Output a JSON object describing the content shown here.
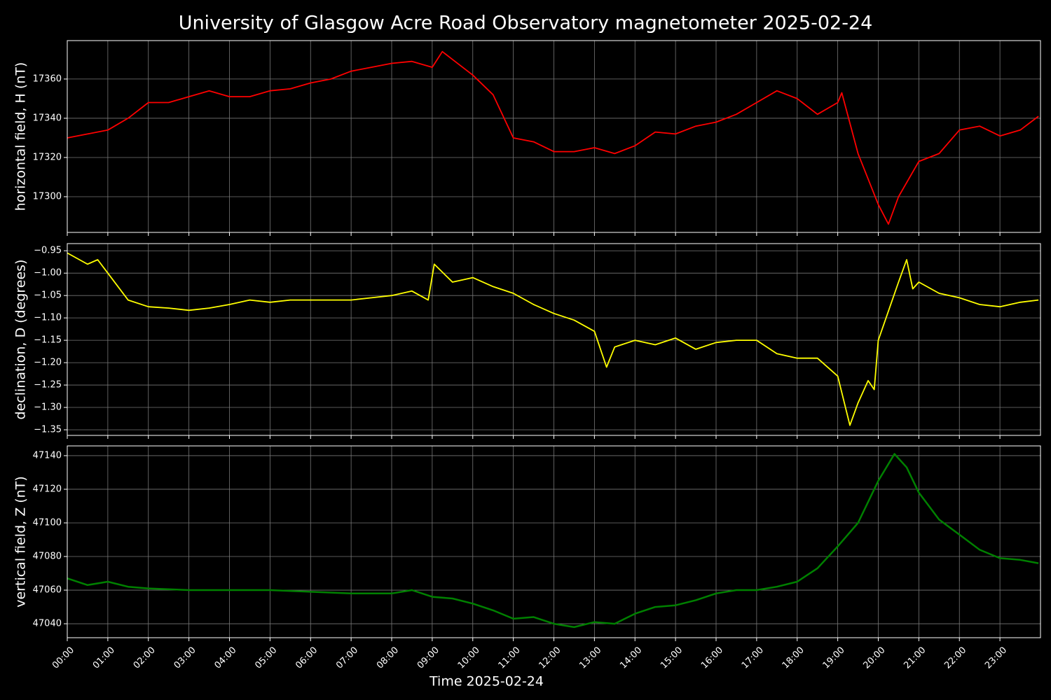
{
  "title": "University of Glasgow Acre Road Observatory magnetometer 2025-02-24",
  "chart_data": [
    {
      "type": "line",
      "ylabel": "horizontal field, H (nT)",
      "color": "#ff0000",
      "x": [
        0,
        0.5,
        1,
        1.5,
        2,
        2.5,
        3,
        3.5,
        4,
        4.5,
        5,
        5.5,
        6,
        6.5,
        7,
        7.5,
        8,
        8.5,
        9,
        9.25,
        9.5,
        10,
        10.5,
        11,
        11.5,
        12,
        12.5,
        13,
        13.5,
        14,
        14.5,
        15,
        15.5,
        16,
        16.5,
        17,
        17.5,
        18,
        18.5,
        19,
        19.1,
        19.5,
        20,
        20.25,
        20.5,
        21,
        21.5,
        22,
        22.5,
        23,
        23.5,
        23.95
      ],
      "values": [
        17330,
        17332,
        17334,
        17340,
        17348,
        17348,
        17351,
        17354,
        17351,
        17351,
        17354,
        17355,
        17358,
        17360,
        17364,
        17366,
        17368,
        17369,
        17366,
        17374,
        17370,
        17362,
        17352,
        17330,
        17328,
        17323,
        17323,
        17325,
        17322,
        17326,
        17333,
        17332,
        17336,
        17338,
        17342,
        17348,
        17354,
        17350,
        17342,
        17348,
        17353,
        17322,
        17296,
        17286,
        17300,
        17318,
        17322,
        17334,
        17336,
        17331,
        17334,
        17341
      ],
      "ylim": [
        17281.8,
        17379.6
      ],
      "yticks": [
        17300,
        17320,
        17340,
        17360
      ],
      "grid": true
    },
    {
      "type": "line",
      "ylabel": "declination, D (degrees)",
      "color": "#ffff00",
      "x": [
        0,
        0.5,
        0.75,
        1,
        1.5,
        2,
        2.5,
        3,
        3.5,
        4,
        4.5,
        5,
        5.5,
        6,
        6.5,
        7,
        7.5,
        8,
        8.5,
        8.9,
        9.05,
        9.5,
        10,
        10.5,
        11,
        11.5,
        12,
        12.5,
        13,
        13.3,
        13.5,
        14,
        14.5,
        15,
        15.5,
        16,
        16.5,
        17,
        17.5,
        18,
        18.5,
        19,
        19.3,
        19.5,
        19.75,
        19.9,
        20,
        20.5,
        20.7,
        20.85,
        21,
        21.5,
        22,
        22.5,
        23,
        23.5,
        23.95
      ],
      "values": [
        -0.955,
        -0.98,
        -0.97,
        -1.0,
        -1.06,
        -1.075,
        -1.078,
        -1.083,
        -1.078,
        -1.07,
        -1.06,
        -1.065,
        -1.06,
        -1.06,
        -1.06,
        -1.06,
        -1.055,
        -1.05,
        -1.04,
        -1.06,
        -0.98,
        -1.02,
        -1.01,
        -1.03,
        -1.045,
        -1.07,
        -1.09,
        -1.105,
        -1.13,
        -1.21,
        -1.165,
        -1.15,
        -1.16,
        -1.145,
        -1.17,
        -1.155,
        -1.15,
        -1.15,
        -1.18,
        -1.19,
        -1.19,
        -1.23,
        -1.34,
        -1.29,
        -1.24,
        -1.26,
        -1.15,
        -1.02,
        -0.97,
        -1.035,
        -1.02,
        -1.045,
        -1.055,
        -1.07,
        -1.075,
        -1.065,
        -1.06
      ],
      "ylim": [
        -1.3625,
        -0.934
      ],
      "yticks": [
        {
          "value": -0.95,
          "label": "−0.95"
        },
        {
          "value": -1.0,
          "label": "−1.00"
        },
        {
          "value": -1.05,
          "label": "−1.05"
        },
        {
          "value": -1.1,
          "label": "−1.10"
        },
        {
          "value": -1.15,
          "label": "−1.15"
        },
        {
          "value": -1.2,
          "label": "−1.20"
        },
        {
          "value": -1.25,
          "label": "−1.25"
        },
        {
          "value": -1.3,
          "label": "−1.30"
        },
        {
          "value": -1.35,
          "label": "−1.35"
        }
      ],
      "grid": true
    },
    {
      "type": "line",
      "ylabel": "vertical field, Z (nT)",
      "xlabel": "Time 2025-02-24",
      "color": "#008000",
      "x": [
        0,
        0.5,
        1,
        1.5,
        2,
        3,
        4,
        5,
        6,
        7,
        8,
        8.5,
        9,
        9.5,
        10,
        10.5,
        11,
        11.5,
        12,
        12.5,
        13,
        13.5,
        14,
        14.5,
        15,
        15.5,
        16,
        16.5,
        17,
        17.5,
        18,
        18.5,
        19,
        19.5,
        20,
        20.4,
        20.7,
        21,
        21.5,
        22,
        22.5,
        23,
        23.5,
        23.95
      ],
      "values": [
        47067,
        47063,
        47065,
        47062,
        47061,
        47060,
        47060,
        47060,
        47059,
        47058,
        47058,
        47060,
        47056,
        47055,
        47052,
        47048,
        47043,
        47044,
        47040,
        47038,
        47041,
        47040,
        47046,
        47050,
        47051,
        47054,
        47058,
        47060,
        47060,
        47062,
        47065,
        47073,
        47086,
        47100,
        47125,
        47141,
        47133,
        47118,
        47102,
        47093,
        47084,
        47079,
        47078,
        47076
      ],
      "ylim": [
        47031.7,
        47145.8
      ],
      "yticks": [
        47040,
        47060,
        47080,
        47100,
        47120,
        47140
      ],
      "xlim": [
        0,
        24
      ],
      "xticks": [
        {
          "value": 0,
          "label": "00:00"
        },
        {
          "value": 1,
          "label": "01:00"
        },
        {
          "value": 2,
          "label": "02:00"
        },
        {
          "value": 3,
          "label": "03:00"
        },
        {
          "value": 4,
          "label": "04:00"
        },
        {
          "value": 5,
          "label": "05:00"
        },
        {
          "value": 6,
          "label": "06:00"
        },
        {
          "value": 7,
          "label": "07:00"
        },
        {
          "value": 8,
          "label": "08:00"
        },
        {
          "value": 9,
          "label": "09:00"
        },
        {
          "value": 10,
          "label": "10:00"
        },
        {
          "value": 11,
          "label": "11:00"
        },
        {
          "value": 12,
          "label": "12:00"
        },
        {
          "value": 13,
          "label": "13:00"
        },
        {
          "value": 14,
          "label": "14:00"
        },
        {
          "value": 15,
          "label": "15:00"
        },
        {
          "value": 16,
          "label": "16:00"
        },
        {
          "value": 17,
          "label": "17:00"
        },
        {
          "value": 18,
          "label": "18:00"
        },
        {
          "value": 19,
          "label": "19:00"
        },
        {
          "value": 20,
          "label": "20:00"
        },
        {
          "value": 21,
          "label": "21:00"
        },
        {
          "value": 22,
          "label": "22:00"
        },
        {
          "value": 23,
          "label": "23:00"
        }
      ],
      "grid": true
    }
  ]
}
